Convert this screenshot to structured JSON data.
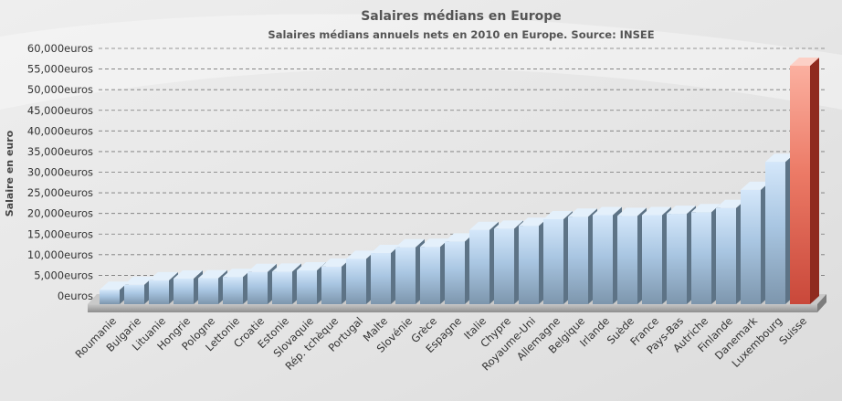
{
  "chart_data": {
    "type": "bar",
    "title": "Salaires médians en Europe",
    "subtitle": "Salaires médians annuels nets en 2010 en Europe. Source: INSEE",
    "ylabel": "Salaire en euro",
    "xlabel": "",
    "ylim": [
      0,
      60000
    ],
    "y_ticks": [
      "0euros",
      "5,000euros",
      "10,000euros",
      "15,000euros",
      "20,000euros",
      "25,000euros",
      "30,000euros",
      "35,000euros",
      "40,000euros",
      "45,000euros",
      "50,000euros",
      "55,000euros",
      "60,000euros"
    ],
    "grid": true,
    "categories": [
      "Roumanie",
      "Bulgarie",
      "Lituanie",
      "Hongrie",
      "Pologne",
      "Lettonie",
      "Croatie",
      "Estonie",
      "Slovaquie",
      "Rép. tchèque",
      "Portugal",
      "Malte",
      "Slovénie",
      "Grèce",
      "Espagne",
      "Italie",
      "Chypre",
      "Royaume-Uni",
      "Allemagne",
      "Belgique",
      "Irlande",
      "Suède",
      "France",
      "Pays-Bas",
      "Autriche",
      "Finlande",
      "Danemark",
      "Luxembourg",
      "Suisse"
    ],
    "values": [
      1500,
      2700,
      3800,
      4200,
      4300,
      4600,
      5800,
      5900,
      6200,
      7100,
      9000,
      10400,
      11800,
      11900,
      13200,
      16000,
      16300,
      17000,
      18600,
      19200,
      19600,
      19400,
      19600,
      19900,
      20300,
      21300,
      25700,
      32500,
      55800
    ],
    "highlight": "Suisse",
    "colors": {
      "bar": "#a9c6e2",
      "bar_highlight": "#e8685a",
      "background": "#e4e4e4",
      "grid": "#777777",
      "floor": "#a8a8a8"
    }
  }
}
